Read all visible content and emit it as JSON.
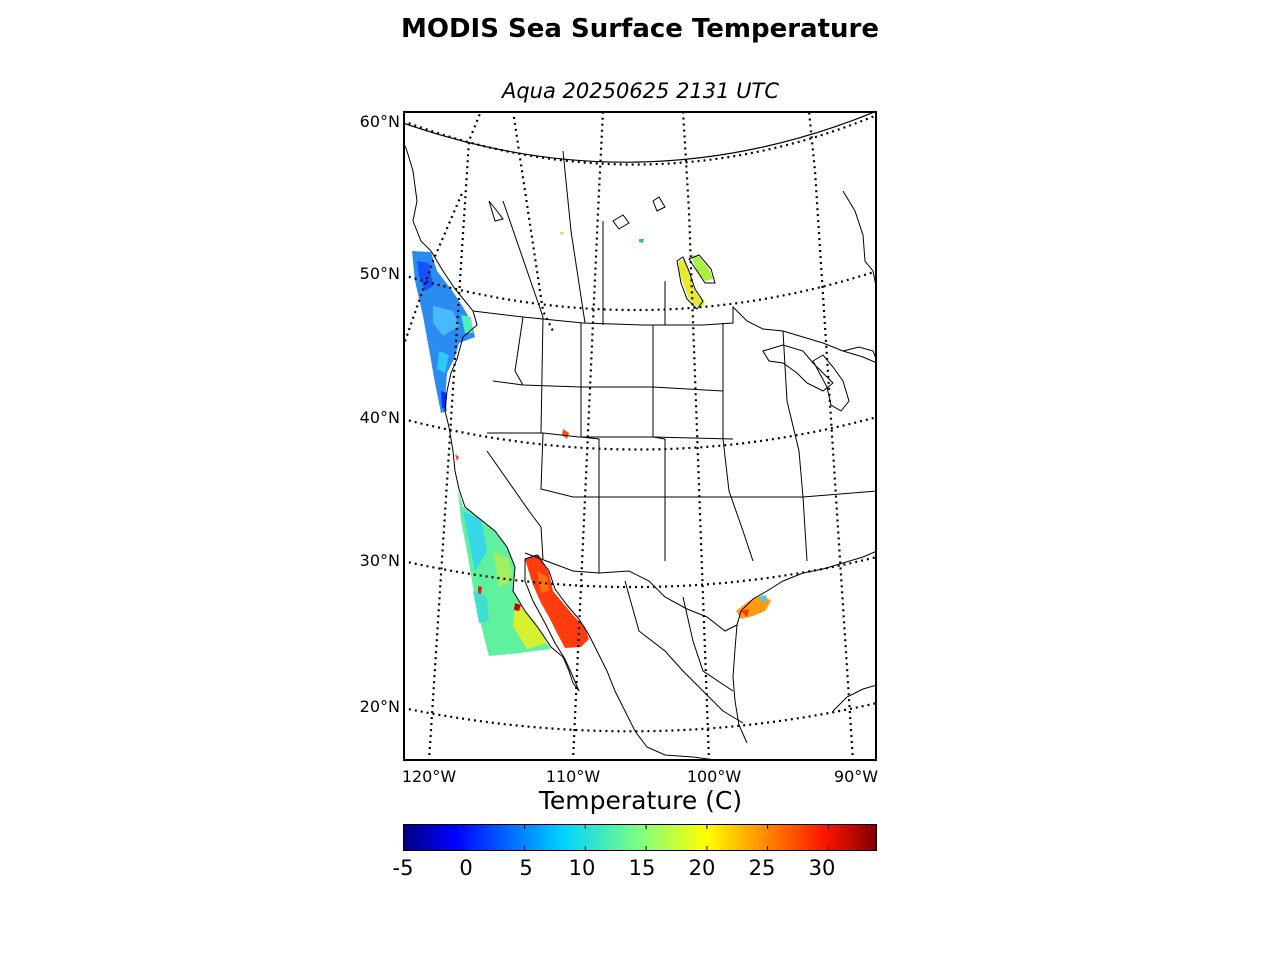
{
  "figure": {
    "title": "MODIS Sea Surface Temperature",
    "subtitle": "Aqua 20250625 2131 UTC"
  },
  "map": {
    "projection": "Lambert conformal",
    "lat_range": [
      17,
      61
    ],
    "lon_range": [
      -121,
      -89
    ],
    "lat_labels": [
      "60°N",
      "50°N",
      "40°N",
      "30°N",
      "20°N"
    ],
    "lon_labels": [
      "120°W",
      "110°W",
      "100°W",
      "90°W"
    ],
    "graticule_style": "dotted",
    "features": [
      "coastlines",
      "country borders",
      "state/province borders"
    ],
    "data_regions": [
      {
        "region": "Pacific coast off British Columbia / Washington",
        "temperature_range_c": [
          3,
          13
        ]
      },
      {
        "region": "Pacific coast off Baja California",
        "temperature_range_c": [
          12,
          20
        ]
      },
      {
        "region": "Gulf of California",
        "temperature_range_c": [
          27,
          30
        ]
      },
      {
        "region": "Gulf of Mexico near Texas coast",
        "temperature_range_c": [
          25,
          30
        ]
      },
      {
        "region": "Lake Winnipeg / Manitoba lakes",
        "temperature_range_c": [
          17,
          21
        ]
      }
    ]
  },
  "colorbar": {
    "label": "Temperature (C)",
    "colormap": "jet",
    "range": [
      -5,
      34
    ],
    "ticks": [
      "-5",
      "0",
      "5",
      "10",
      "15",
      "20",
      "25",
      "30"
    ],
    "colors": [
      "#00007f",
      "#0000ff",
      "#007fff",
      "#00ffff",
      "#7fff7f",
      "#ffff00",
      "#ff7f00",
      "#ff0000",
      "#7f0000"
    ]
  }
}
